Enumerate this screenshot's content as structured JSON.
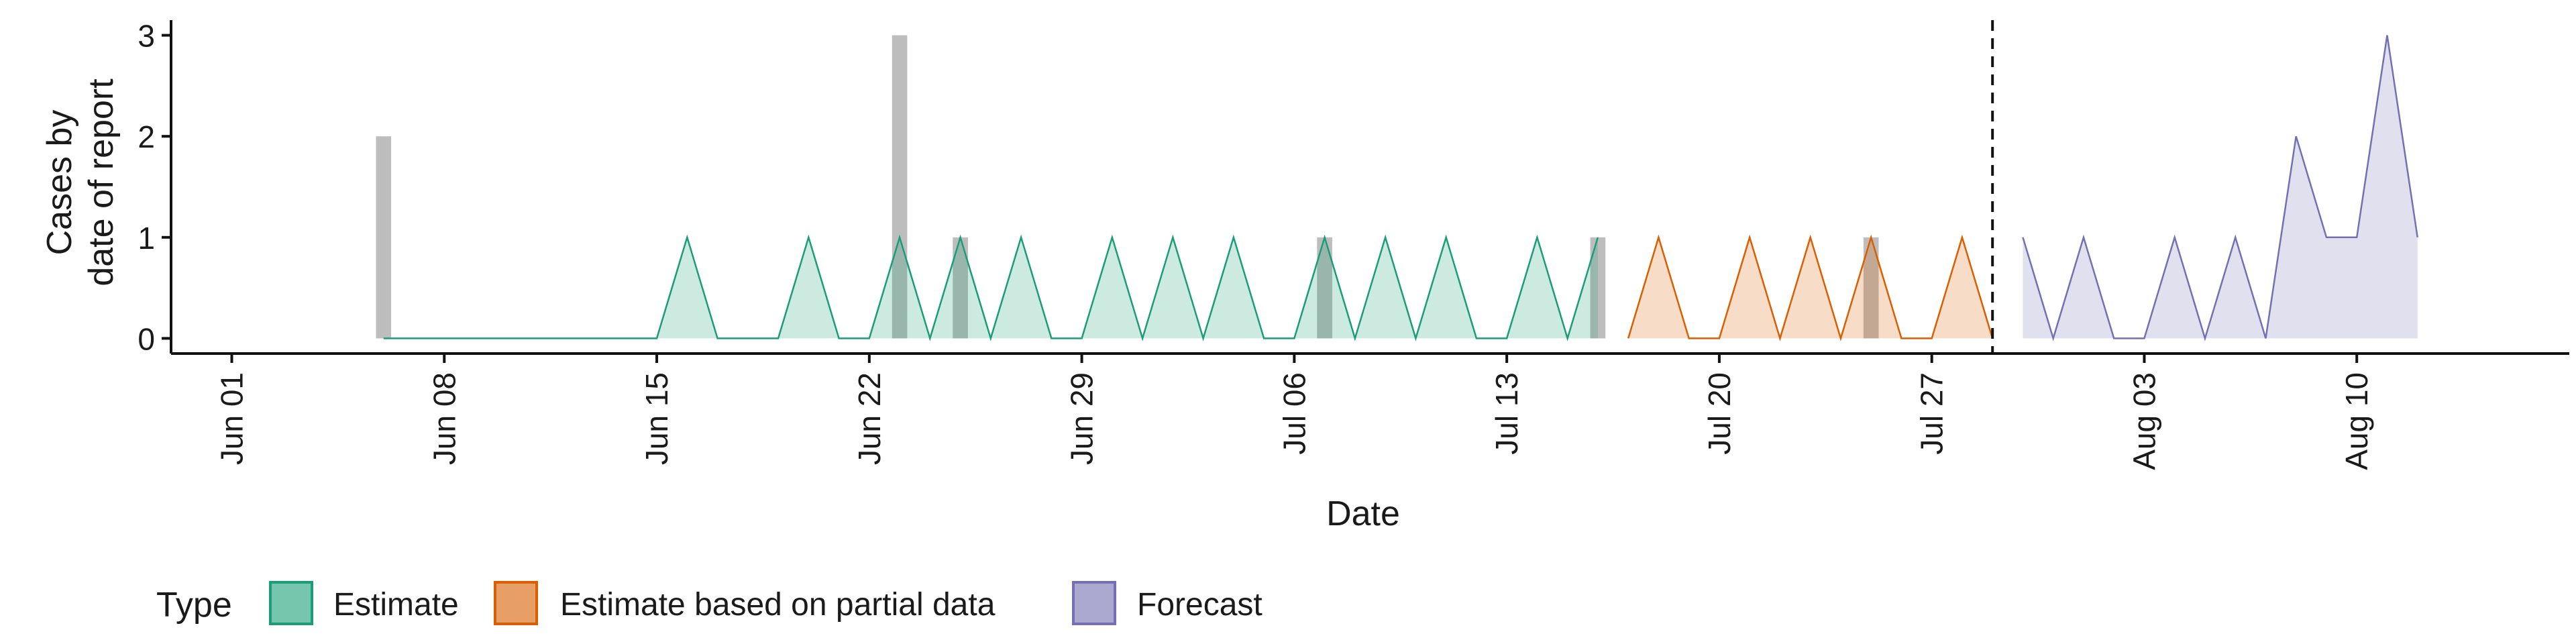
{
  "chart_data": {
    "type": "area",
    "title": "",
    "xlabel": "Date",
    "ylabel_lines": [
      "Cases by",
      "date of report"
    ],
    "x_ticks": [
      "2020-06-01",
      "2020-06-08",
      "2020-06-15",
      "2020-06-22",
      "2020-06-29",
      "2020-07-06",
      "2020-07-13",
      "2020-07-20",
      "2020-07-27",
      "2020-08-03",
      "2020-08-10"
    ],
    "x_tick_labels": [
      "Jun 01",
      "Jun 08",
      "Jun 15",
      "Jun 22",
      "Jun 29",
      "Jul 06",
      "Jul 13",
      "Jul 20",
      "Jul 27",
      "Aug 03",
      "Aug 10"
    ],
    "xlim": [
      "2020-05-30",
      "2020-08-17"
    ],
    "y_ticks": [
      0,
      1,
      2,
      3
    ],
    "ylim": [
      -0.15,
      3.15
    ],
    "grid": false,
    "reported_cases": {
      "x": [
        "2020-06-06",
        "2020-06-23",
        "2020-06-25",
        "2020-07-07",
        "2020-07-16",
        "2020-07-25"
      ],
      "y": [
        2,
        3,
        1,
        1,
        1,
        1
      ],
      "color": "#bdbdbd"
    },
    "cutoff_date": "2020-07-29",
    "series": [
      {
        "name": "Estimate",
        "fill": "#1b9e77",
        "stroke": "#1b9e77",
        "x": [
          "2020-06-06",
          "2020-06-07",
          "2020-06-08",
          "2020-06-09",
          "2020-06-10",
          "2020-06-11",
          "2020-06-12",
          "2020-06-13",
          "2020-06-14",
          "2020-06-15",
          "2020-06-16",
          "2020-06-17",
          "2020-06-18",
          "2020-06-19",
          "2020-06-20",
          "2020-06-21",
          "2020-06-22",
          "2020-06-23",
          "2020-06-24",
          "2020-06-25",
          "2020-06-26",
          "2020-06-27",
          "2020-06-28",
          "2020-06-29",
          "2020-06-30",
          "2020-07-01",
          "2020-07-02",
          "2020-07-03",
          "2020-07-04",
          "2020-07-05",
          "2020-07-06",
          "2020-07-07",
          "2020-07-08",
          "2020-07-09",
          "2020-07-10",
          "2020-07-11",
          "2020-07-12",
          "2020-07-13",
          "2020-07-14",
          "2020-07-15",
          "2020-07-16"
        ],
        "y": [
          0,
          0,
          0,
          0,
          0,
          0,
          0,
          0,
          0,
          0,
          1,
          0,
          0,
          0,
          1,
          0,
          0,
          1,
          0,
          1,
          0,
          1,
          0,
          0,
          1,
          0,
          1,
          0,
          1,
          0,
          0,
          1,
          0,
          1,
          0,
          1,
          0,
          0,
          1,
          0,
          1
        ]
      },
      {
        "name": "Estimate based on partial data",
        "fill": "#d95f02",
        "stroke": "#d95f02",
        "x": [
          "2020-07-17",
          "2020-07-18",
          "2020-07-19",
          "2020-07-20",
          "2020-07-21",
          "2020-07-22",
          "2020-07-23",
          "2020-07-24",
          "2020-07-25",
          "2020-07-26",
          "2020-07-27",
          "2020-07-28",
          "2020-07-29"
        ],
        "y": [
          0,
          1,
          0,
          0,
          1,
          0,
          1,
          0,
          1,
          0,
          0,
          1,
          0
        ]
      },
      {
        "name": "Forecast",
        "fill": "#7570b3",
        "stroke": "#7570b3",
        "x": [
          "2020-07-30",
          "2020-07-31",
          "2020-08-01",
          "2020-08-02",
          "2020-08-03",
          "2020-08-04",
          "2020-08-05",
          "2020-08-06",
          "2020-08-07",
          "2020-08-08",
          "2020-08-09",
          "2020-08-10",
          "2020-08-11",
          "2020-08-12"
        ],
        "y": [
          1,
          0,
          1,
          0,
          0,
          1,
          0,
          1,
          0,
          2,
          1,
          1,
          3,
          1
        ]
      }
    ],
    "legend": {
      "title": "Type",
      "position": "bottom",
      "items": [
        "Estimate",
        "Estimate based on partial data",
        "Forecast"
      ]
    }
  }
}
